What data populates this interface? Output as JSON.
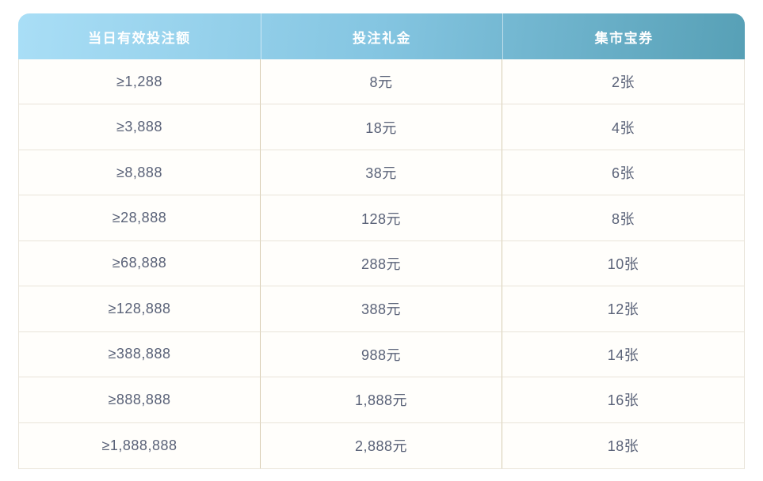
{
  "chart_data": {
    "type": "table",
    "title": "",
    "columns": [
      "当日有效投注额",
      "投注礼金",
      "集市宝券"
    ],
    "rows": [
      [
        "≥1,288",
        "8元",
        "2张"
      ],
      [
        "≥3,888",
        "18元",
        "4张"
      ],
      [
        "≥8,888",
        "38元",
        "6张"
      ],
      [
        "≥28,888",
        "128元",
        "8张"
      ],
      [
        "≥68,888",
        "288元",
        "10张"
      ],
      [
        "≥128,888",
        "388元",
        "12张"
      ],
      [
        "≥388,888",
        "988元",
        "14张"
      ],
      [
        "≥888,888",
        "1,888元",
        "16张"
      ],
      [
        "≥1,888,888",
        "2,888元",
        "18张"
      ]
    ],
    "layout": {
      "legend": "none",
      "grid": "on",
      "column_alignment": [
        "center",
        "center",
        "center"
      ]
    }
  },
  "colors": {
    "background": "#ffffff",
    "header_gradient_left": "#a9def6",
    "header_gradient_mid": "#84c5e1",
    "header_gradient_right": "#57a0b6",
    "header_text": "#ffffff",
    "cell_text": "#5a6278",
    "vertical_border": "#d6cbb0",
    "horizontal_border": "#e9e4d9"
  }
}
